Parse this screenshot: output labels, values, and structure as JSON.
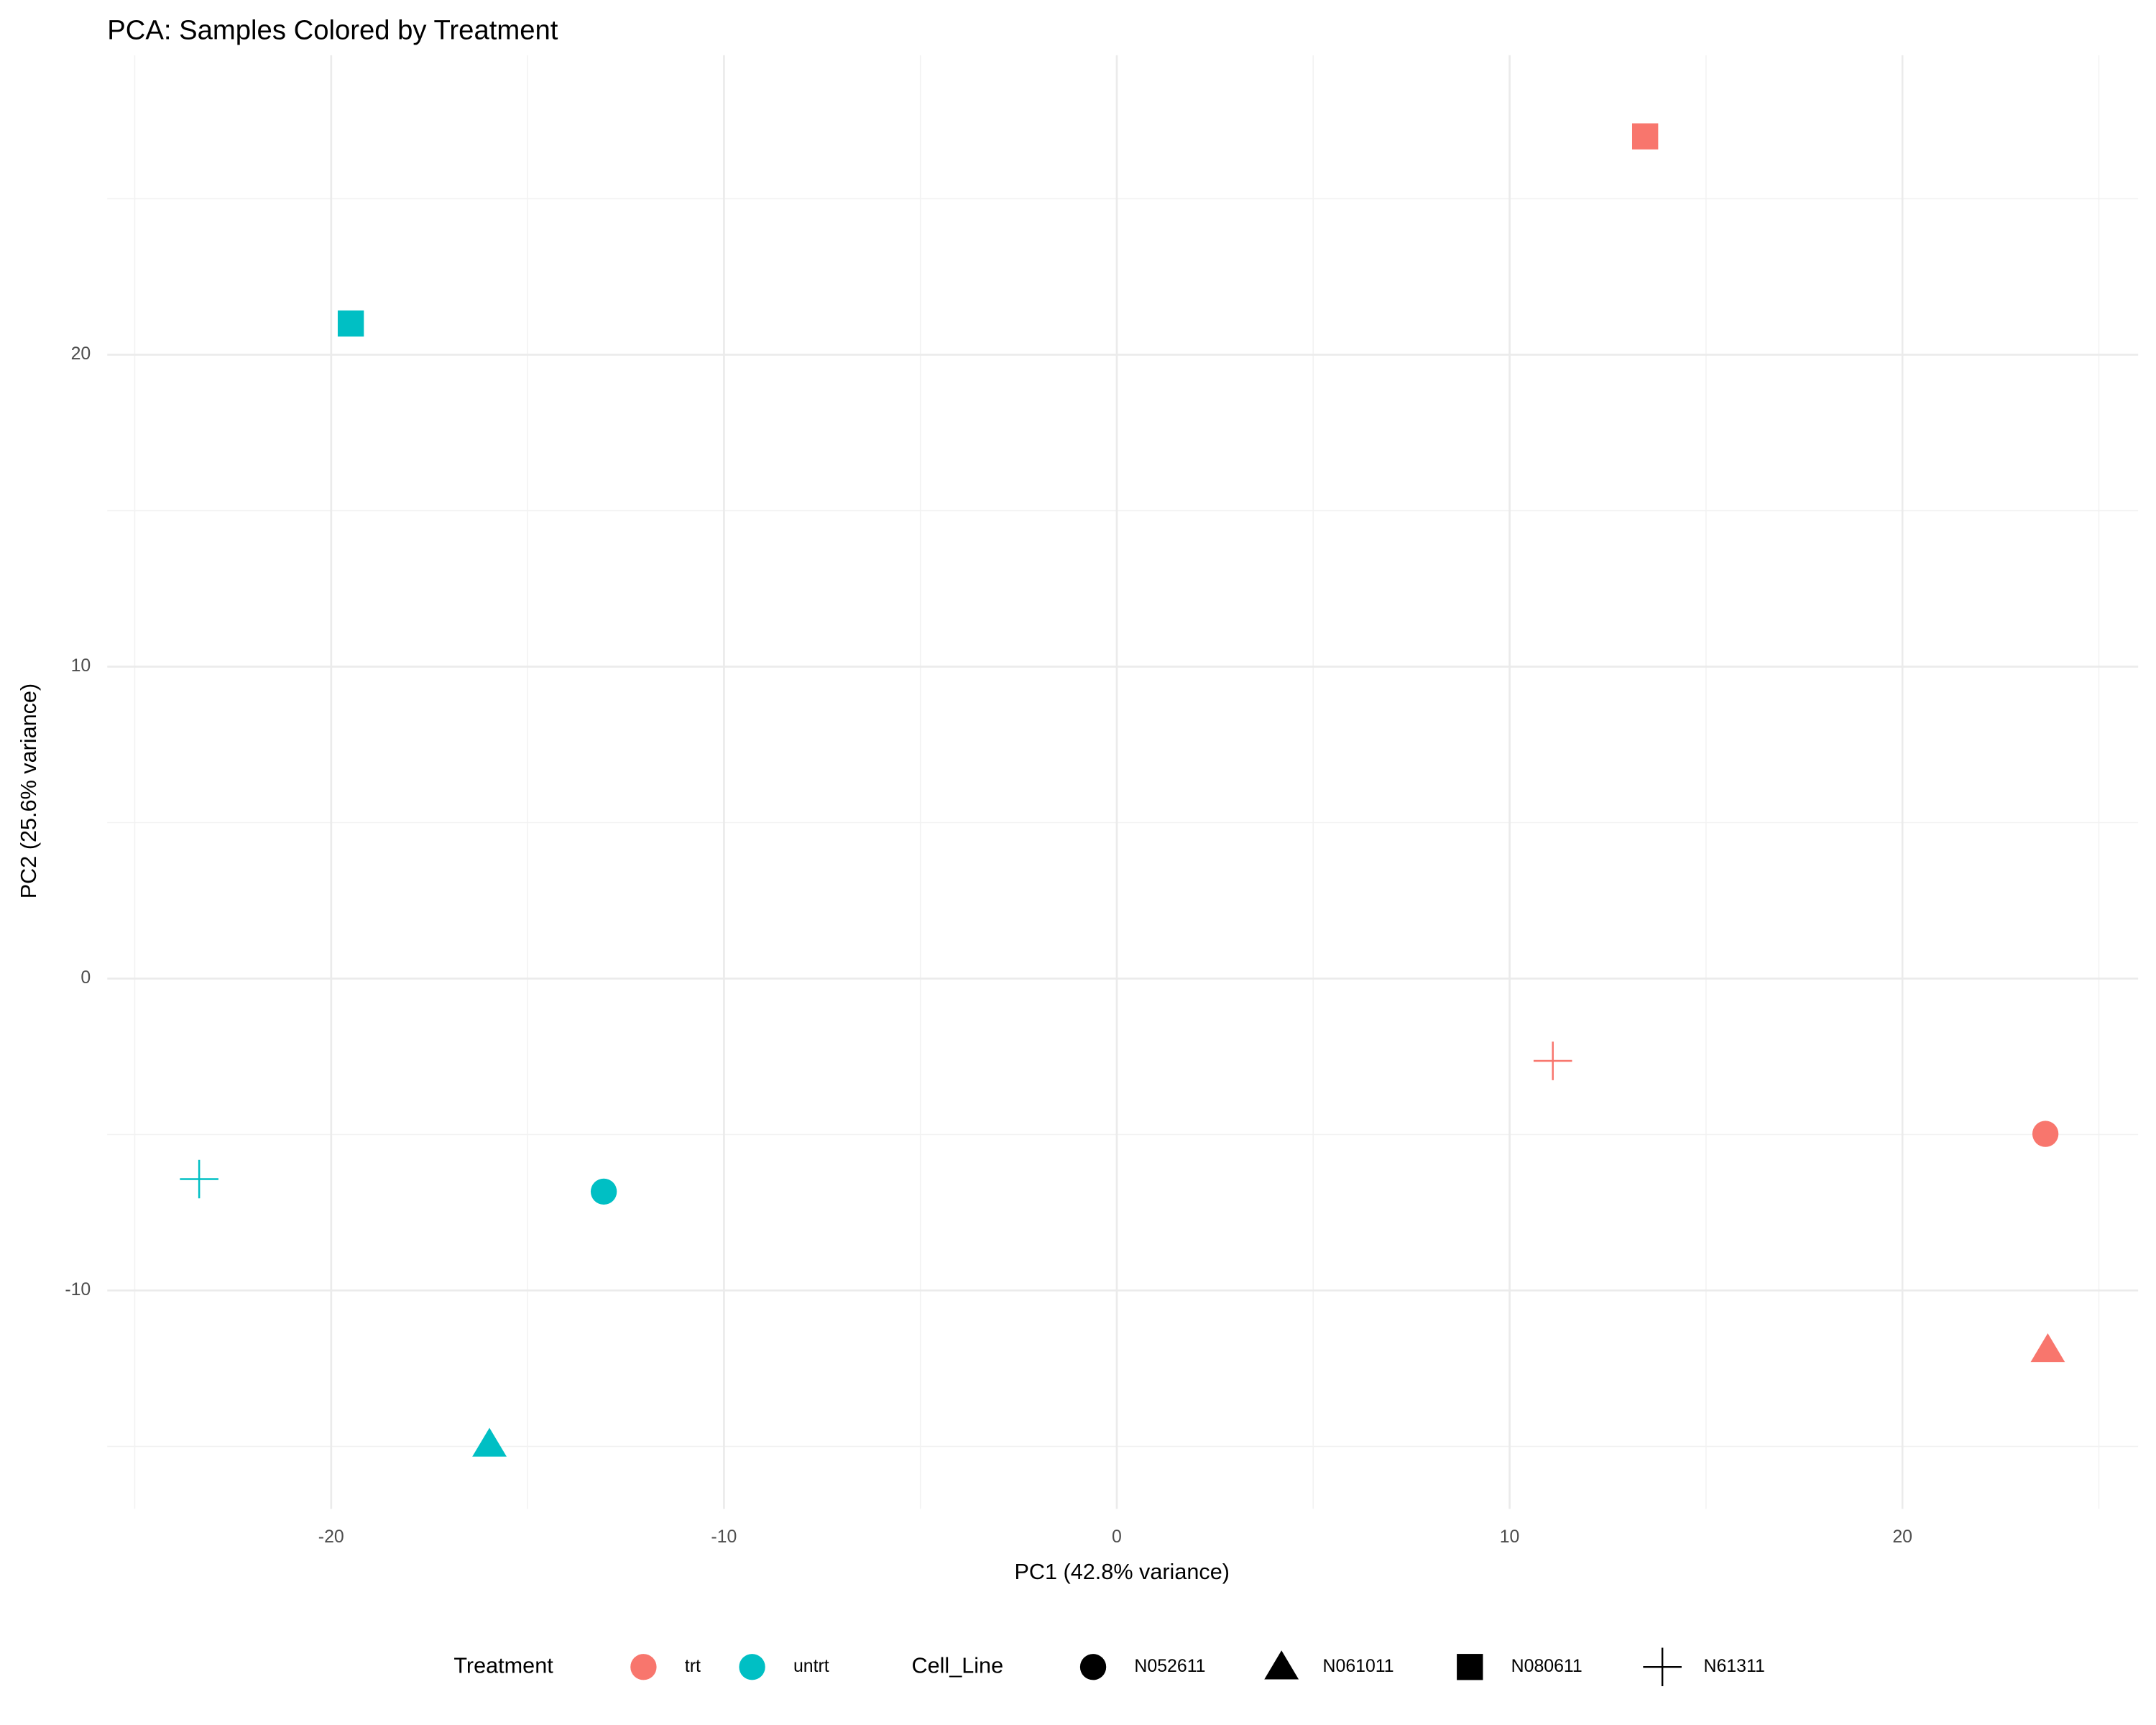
{
  "chart_data": {
    "type": "scatter",
    "title": "PCA: Samples Colored by Treatment",
    "x_label": "PC1 (42.8% variance)",
    "y_label": "PC2 (25.6% variance)",
    "xlim": [
      -25.7,
      26.0
    ],
    "ylim": [
      -17.0,
      29.6
    ],
    "xticks": [
      -20,
      -10,
      0,
      10,
      20
    ],
    "yticks": [
      -10,
      0,
      10,
      20
    ],
    "x_minor_grid": [
      -25,
      -15,
      -5,
      5,
      15,
      25
    ],
    "y_minor_grid": [
      -15,
      -5,
      5,
      15,
      25
    ],
    "grid": true,
    "legend_position": "bottom",
    "color_legend_title": "Treatment",
    "shape_legend": {
      "title": "Cell_Line",
      "items": [
        "N052611",
        "N061011",
        "N080611",
        "N61311"
      ],
      "shapes": [
        "circle",
        "triangle",
        "square",
        "plus"
      ]
    },
    "series": [
      {
        "name": "trt",
        "color": "#F8766D",
        "cell_line": [
          "N052611",
          "N061011",
          "N080611",
          "N61311"
        ],
        "x": [
          23.64,
          23.7,
          13.45,
          11.1
        ],
        "values": [
          -4.98,
          -11.9,
          27.0,
          -2.64
        ]
      },
      {
        "name": "untrt",
        "color": "#00BFC4",
        "cell_line": [
          "N052611",
          "N061011",
          "N080611",
          "N61311"
        ],
        "x": [
          -13.06,
          -15.97,
          -19.5,
          -23.36
        ],
        "values": [
          -6.83,
          -14.93,
          21.0,
          -6.43
        ]
      }
    ]
  }
}
